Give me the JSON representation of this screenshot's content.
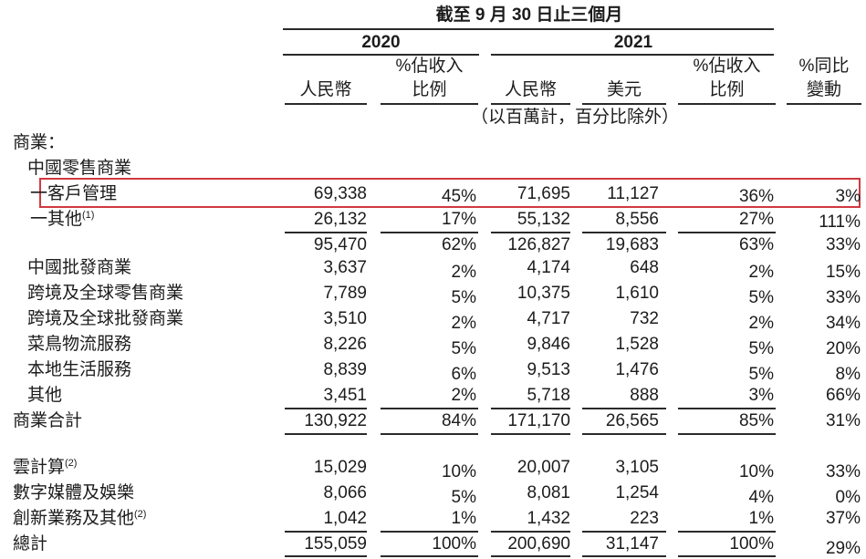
{
  "header": {
    "period": "截至 9 月 30 日止三個月",
    "year_2020": "2020",
    "year_2021": "2021",
    "unit_note": "（以百萬計，百分比除外）",
    "columns": [
      {
        "line1": "",
        "line2": "人民幣"
      },
      {
        "line1": "%佔收入",
        "line2": "比例"
      },
      {
        "line1": "",
        "line2": "人民幣"
      },
      {
        "line1": "",
        "line2": "美元"
      },
      {
        "line1": "%佔收入",
        "line2": "比例"
      },
      {
        "line1": "%同比",
        "line2": "變動"
      }
    ]
  },
  "section_commerce_label": "商業：",
  "china_retail_label": "中國零售商業",
  "highlight_color": "#d0393e",
  "rows": [
    {
      "label": "一客戶管理",
      "sup": "",
      "values": [
        "69,338",
        "45%",
        "71,695",
        "11,127",
        "36%",
        "3%"
      ]
    },
    {
      "label": "一其他",
      "sup": "(1)",
      "values": [
        "26,132",
        "17%",
        "55,132",
        "8,556",
        "27%",
        "111%"
      ]
    },
    {
      "label": "",
      "sup": "",
      "values": [
        "95,470",
        "62%",
        "126,827",
        "19,683",
        "63%",
        "33%"
      ]
    },
    {
      "label": "中國批發商業",
      "sup": "",
      "values": [
        "3,637",
        "2%",
        "4,174",
        "648",
        "2%",
        "15%"
      ]
    },
    {
      "label": "跨境及全球零售商業",
      "sup": "",
      "values": [
        "7,789",
        "5%",
        "10,375",
        "1,610",
        "5%",
        "33%"
      ]
    },
    {
      "label": "跨境及全球批發商業",
      "sup": "",
      "values": [
        "3,510",
        "2%",
        "4,717",
        "732",
        "2%",
        "34%"
      ]
    },
    {
      "label": "菜鳥物流服務",
      "sup": "",
      "values": [
        "8,226",
        "5%",
        "9,846",
        "1,528",
        "5%",
        "20%"
      ]
    },
    {
      "label": "本地生活服務",
      "sup": "",
      "values": [
        "8,839",
        "6%",
        "9,513",
        "1,476",
        "5%",
        "8%"
      ]
    },
    {
      "label": "其他",
      "sup": "",
      "values": [
        "3,451",
        "2%",
        "5,718",
        "888",
        "3%",
        "66%"
      ]
    },
    {
      "label": "商業合計",
      "sup": "",
      "values": [
        "130,922",
        "84%",
        "171,170",
        "26,565",
        "85%",
        "31%"
      ]
    },
    {
      "label": "雲計算",
      "sup": "(2)",
      "values": [
        "15,029",
        "10%",
        "20,007",
        "3,105",
        "10%",
        "33%"
      ]
    },
    {
      "label": "數字媒體及娛樂",
      "sup": "",
      "values": [
        "8,066",
        "5%",
        "8,081",
        "1,254",
        "4%",
        "0%"
      ]
    },
    {
      "label": "創新業務及其他",
      "sup": "(2)",
      "values": [
        "1,042",
        "1%",
        "1,432",
        "223",
        "1%",
        "37%"
      ]
    },
    {
      "label": "總計",
      "sup": "",
      "values": [
        "155,059",
        "100%",
        "200,690",
        "31,147",
        "100%",
        "29%"
      ]
    }
  ]
}
